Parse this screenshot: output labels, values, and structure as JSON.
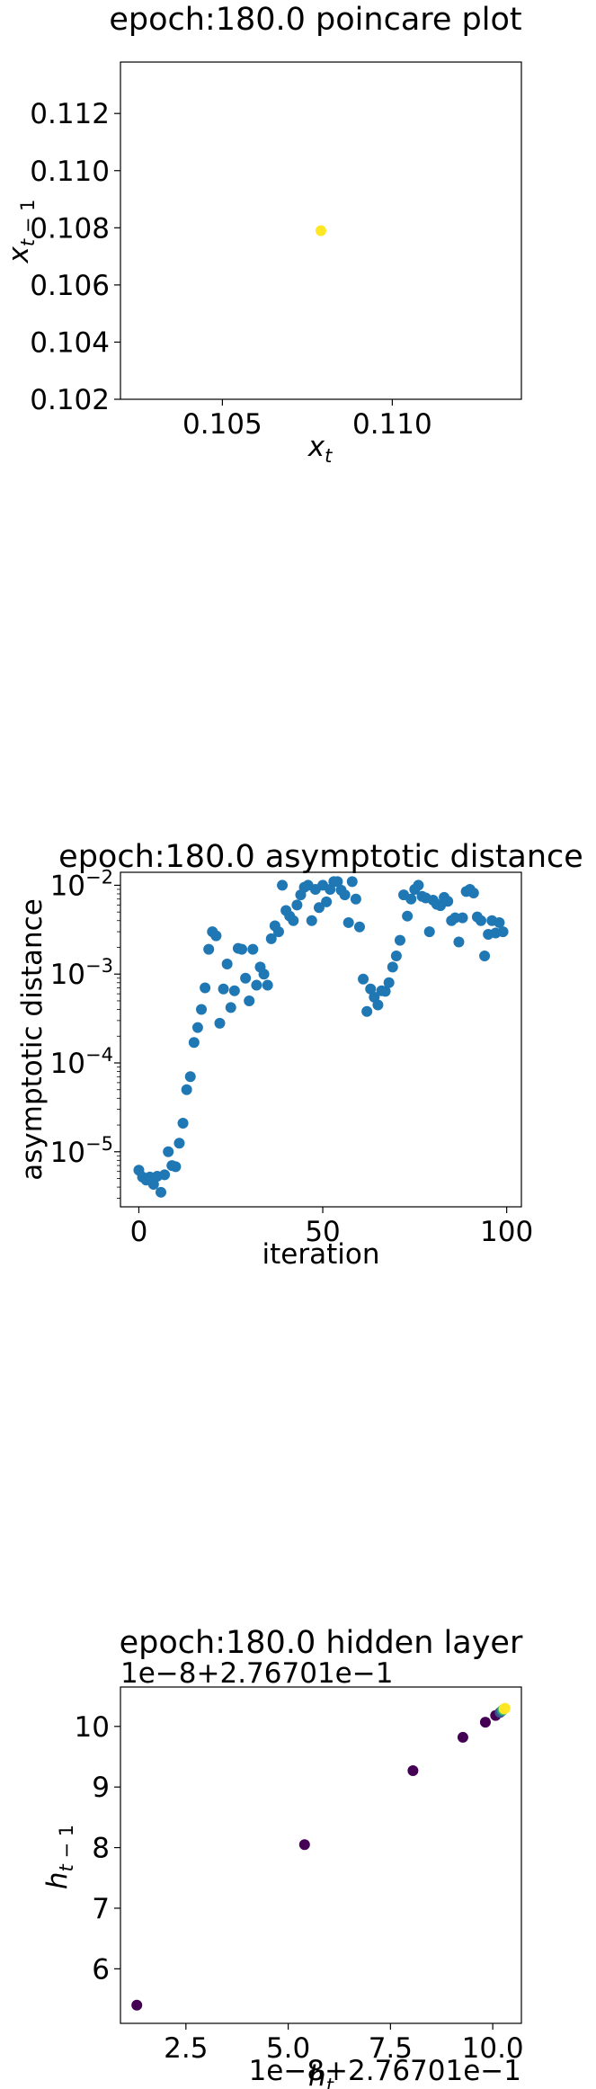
{
  "chart_data": [
    {
      "type": "scatter",
      "title": "epoch:180.0 poincare plot",
      "xlabel": "x_t",
      "ylabel": "x_{t-1}",
      "xlim": [
        0.102,
        0.1138
      ],
      "ylim": [
        0.102,
        0.1138
      ],
      "xticks": [
        0.105,
        0.11
      ],
      "xtick_labels": [
        "0.105",
        "0.110"
      ],
      "yticks": [
        0.102,
        0.104,
        0.106,
        0.108,
        0.11,
        0.112
      ],
      "ytick_labels": [
        "0.102",
        "0.104",
        "0.106",
        "0.108",
        "0.110",
        "0.112"
      ],
      "points": [
        [
          0.1079,
          0.1079
        ]
      ],
      "point_color": "#fde725",
      "grid": false
    },
    {
      "type": "scatter",
      "title": "epoch:180.0 asymptotic distance",
      "xlabel": "iteration",
      "ylabel": "asymptotic distance",
      "yscale": "log",
      "xlim": [
        -5,
        104
      ],
      "ylim": [
        2.4e-06,
        0.014
      ],
      "xticks": [
        0,
        50,
        100
      ],
      "xtick_labels": [
        "0",
        "50",
        "100"
      ],
      "yticks": [
        1e-05,
        0.0001,
        0.001,
        0.01
      ],
      "ytick_labels": [
        "10",
        "10",
        "10",
        "10"
      ],
      "ytick_exponents": [
        "−5",
        "−4",
        "−3",
        "−2"
      ],
      "point_color": "#1f77b4",
      "grid": false,
      "x": [
        0,
        1,
        2,
        3,
        4,
        5,
        6,
        7,
        8,
        9,
        10,
        11,
        12,
        13,
        14,
        15,
        16,
        17,
        18,
        19,
        20,
        21,
        22,
        23,
        24,
        25,
        26,
        27,
        28,
        29,
        30,
        31,
        32,
        33,
        34,
        35,
        36,
        37,
        38,
        39,
        40,
        41,
        42,
        43,
        44,
        45,
        46,
        47,
        48,
        49,
        50,
        51,
        52,
        53,
        54,
        55,
        56,
        57,
        58,
        59,
        60,
        61,
        62,
        63,
        64,
        65,
        66,
        67,
        68,
        69,
        70,
        71,
        72,
        73,
        74,
        75,
        76,
        77,
        78,
        79,
        80,
        81,
        82,
        83,
        84,
        85,
        86,
        87,
        88,
        89,
        90,
        91,
        92,
        93,
        94,
        95,
        96,
        97,
        98,
        99
      ],
      "y": [
        6.2e-06,
        5.2e-06,
        4.8e-06,
        5.2e-06,
        4.3e-06,
        5.3e-06,
        3.5e-06,
        5.5e-06,
        1e-05,
        7e-06,
        6.8e-06,
        1.25e-05,
        2.1e-05,
        5e-05,
        7e-05,
        0.00017,
        0.00025,
        0.0004,
        0.0007,
        0.0019,
        0.003,
        0.0027,
        0.00028,
        0.00068,
        0.0013,
        0.00042,
        0.00065,
        0.00195,
        0.0019,
        0.0009,
        0.0005,
        0.0019,
        0.00075,
        0.0012,
        0.001,
        0.00075,
        0.0025,
        0.0035,
        0.003,
        0.01,
        0.0052,
        0.0045,
        0.004,
        0.006,
        0.0078,
        0.0095,
        0.01,
        0.004,
        0.009,
        0.0056,
        0.01,
        0.0065,
        0.009,
        0.011,
        0.011,
        0.0088,
        0.0078,
        0.0038,
        0.011,
        0.007,
        0.0034,
        0.00088,
        0.00038,
        0.00068,
        0.00055,
        0.00045,
        0.00065,
        0.00064,
        0.0008,
        0.0012,
        0.0016,
        0.0024,
        0.0078,
        0.0045,
        0.007,
        0.009,
        0.01,
        0.0075,
        0.0072,
        0.003,
        0.0068,
        0.0061,
        0.0059,
        0.0073,
        0.0066,
        0.004,
        0.0043,
        0.0023,
        0.0043,
        0.0085,
        0.009,
        0.0082,
        0.0044,
        0.004,
        0.0016,
        0.0028,
        0.004,
        0.0029,
        0.0038,
        0.003
      ]
    },
    {
      "type": "scatter",
      "title": "epoch:180.0 hidden layer",
      "xlabel": "h_t",
      "ylabel": "h_{t-1}",
      "x_offset_text": "1e−8+2.76701e−1",
      "y_offset_text": "1e−8+2.76701e−1",
      "xlim": [
        0.9,
        10.7
      ],
      "ylim": [
        5.1,
        10.65
      ],
      "xticks": [
        2.5,
        5.0,
        7.5,
        10.0
      ],
      "xtick_labels": [
        "2.5",
        "5.0",
        "7.5",
        "10.0"
      ],
      "yticks": [
        6,
        7,
        8,
        9,
        10
      ],
      "ytick_labels": [
        "6",
        "7",
        "8",
        "9",
        "10"
      ],
      "grid": false,
      "colormap": "viridis",
      "points": [
        {
          "x": 1.3,
          "y": 5.4,
          "color": "#440154"
        },
        {
          "x": 5.4,
          "y": 8.05,
          "color": "#440154"
        },
        {
          "x": 8.05,
          "y": 9.27,
          "color": "#440154"
        },
        {
          "x": 9.27,
          "y": 9.82,
          "color": "#440154"
        },
        {
          "x": 9.82,
          "y": 10.07,
          "color": "#440154"
        },
        {
          "x": 10.07,
          "y": 10.18,
          "color": "#440154"
        },
        {
          "x": 10.18,
          "y": 10.23,
          "color": "#3b528b"
        },
        {
          "x": 10.23,
          "y": 10.26,
          "color": "#21918c"
        },
        {
          "x": 10.26,
          "y": 10.28,
          "color": "#5ec962"
        },
        {
          "x": 10.28,
          "y": 10.29,
          "color": "#fde725"
        },
        {
          "x": 10.3,
          "y": 10.3,
          "color": "#fde725"
        }
      ]
    }
  ]
}
